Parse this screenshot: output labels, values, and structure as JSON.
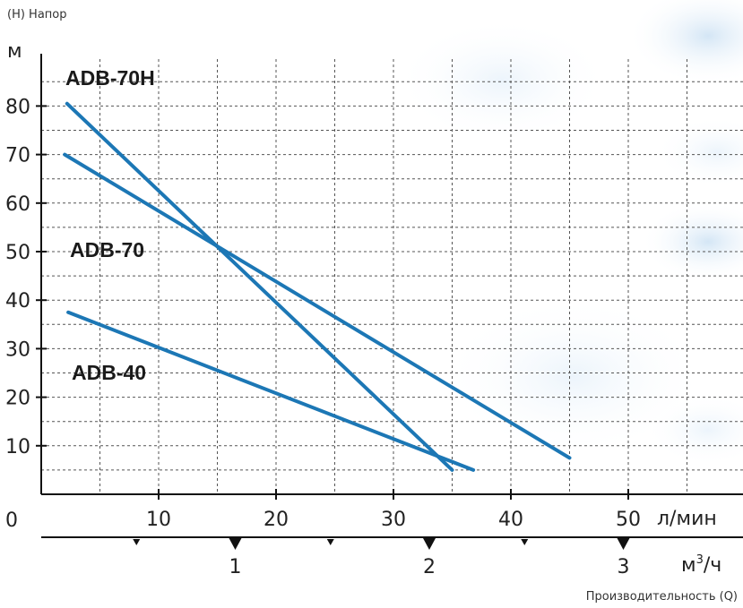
{
  "chart_data": {
    "type": "line",
    "title": "",
    "y_axis_caption": "(H) Напор",
    "y_unit": "м",
    "x_caption": "Производительность (Q)",
    "x_unit_primary": "л/мин",
    "x_unit_secondary_base": "м",
    "x_unit_secondary_sup": "3",
    "x_unit_secondary_tail": "/ч",
    "origin_label": "0",
    "xlim": [
      0,
      55
    ],
    "ylim": [
      0,
      90
    ],
    "x_ticks": [
      10,
      20,
      30,
      40,
      50
    ],
    "y_ticks": [
      10,
      20,
      30,
      40,
      50,
      60,
      70,
      80
    ],
    "secondary_ticks": [
      {
        "value": 1,
        "label": "1"
      },
      {
        "value": 2,
        "label": "2"
      },
      {
        "value": 3,
        "label": "3"
      }
    ],
    "secondary_minor_ticks": [
      0.5,
      1.5,
      2.5
    ],
    "grid": true,
    "line_color": "#1c77b5",
    "series": [
      {
        "name": "ADB-70H",
        "points": [
          [
            2.2,
            80.5
          ],
          [
            35.0,
            5.0
          ]
        ]
      },
      {
        "name": "ADB-70",
        "points": [
          [
            2.0,
            70.0
          ],
          [
            45.0,
            7.5
          ]
        ]
      },
      {
        "name": "ADB-40",
        "points": [
          [
            2.3,
            37.5
          ],
          [
            36.8,
            5.0
          ]
        ]
      }
    ]
  }
}
